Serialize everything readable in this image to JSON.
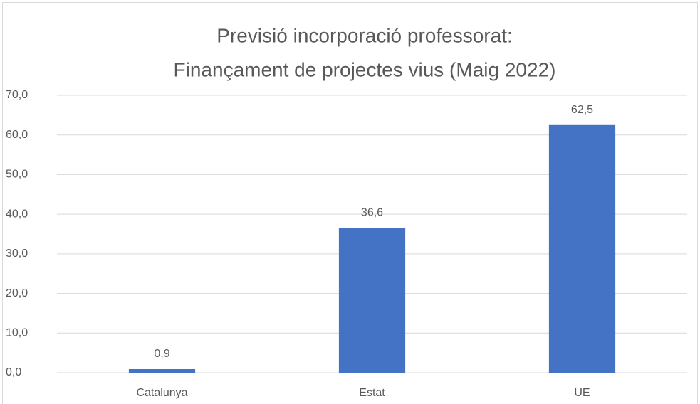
{
  "chart_data": {
    "type": "bar",
    "title": [
      "Previsió incorporació professorat:",
      "Finançament de projectes vius (Maig 2022)"
    ],
    "categories": [
      "Catalunya",
      "Estat",
      "UE"
    ],
    "values": [
      0.9,
      36.6,
      62.5
    ],
    "value_labels": [
      "0,9",
      "36,6",
      "62,5"
    ],
    "color": "#4472c4",
    "ylim": [
      0,
      70
    ],
    "yticks": [
      {
        "value": 0,
        "label": "0,0"
      },
      {
        "value": 10,
        "label": "10,0"
      },
      {
        "value": 20,
        "label": "20,0"
      },
      {
        "value": 30,
        "label": "30,0"
      },
      {
        "value": 40,
        "label": "40,0"
      },
      {
        "value": 50,
        "label": "50,0"
      },
      {
        "value": 60,
        "label": "60,0"
      },
      {
        "value": 70,
        "label": "70,0"
      }
    ],
    "grid": true
  }
}
